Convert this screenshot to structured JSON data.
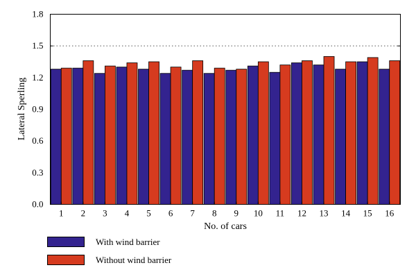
{
  "chart_data": {
    "type": "bar",
    "xlabel": "No. of cars",
    "ylabel": "Lateral Sperling",
    "ylim": [
      0,
      1.8
    ],
    "yticks": [
      "0.0",
      "0.3",
      "0.6",
      "0.9",
      "1.2",
      "1.5",
      "1.8"
    ],
    "categories": [
      "1",
      "2",
      "3",
      "4",
      "5",
      "6",
      "7",
      "8",
      "9",
      "10",
      "11",
      "12",
      "13",
      "14",
      "15",
      "16"
    ],
    "reference_line": 1.5,
    "series": [
      {
        "name": "With wind barrier",
        "color": "#33238f",
        "values": [
          1.28,
          1.29,
          1.24,
          1.3,
          1.28,
          1.24,
          1.27,
          1.24,
          1.27,
          1.31,
          1.25,
          1.34,
          1.32,
          1.28,
          1.35,
          1.28
        ]
      },
      {
        "name": "Without wind barrier",
        "color": "#d63b1f",
        "values": [
          1.29,
          1.36,
          1.31,
          1.34,
          1.35,
          1.3,
          1.36,
          1.29,
          1.28,
          1.35,
          1.32,
          1.36,
          1.4,
          1.35,
          1.39,
          1.36
        ]
      }
    ],
    "legend_position": "bottom-left",
    "grid": false
  }
}
